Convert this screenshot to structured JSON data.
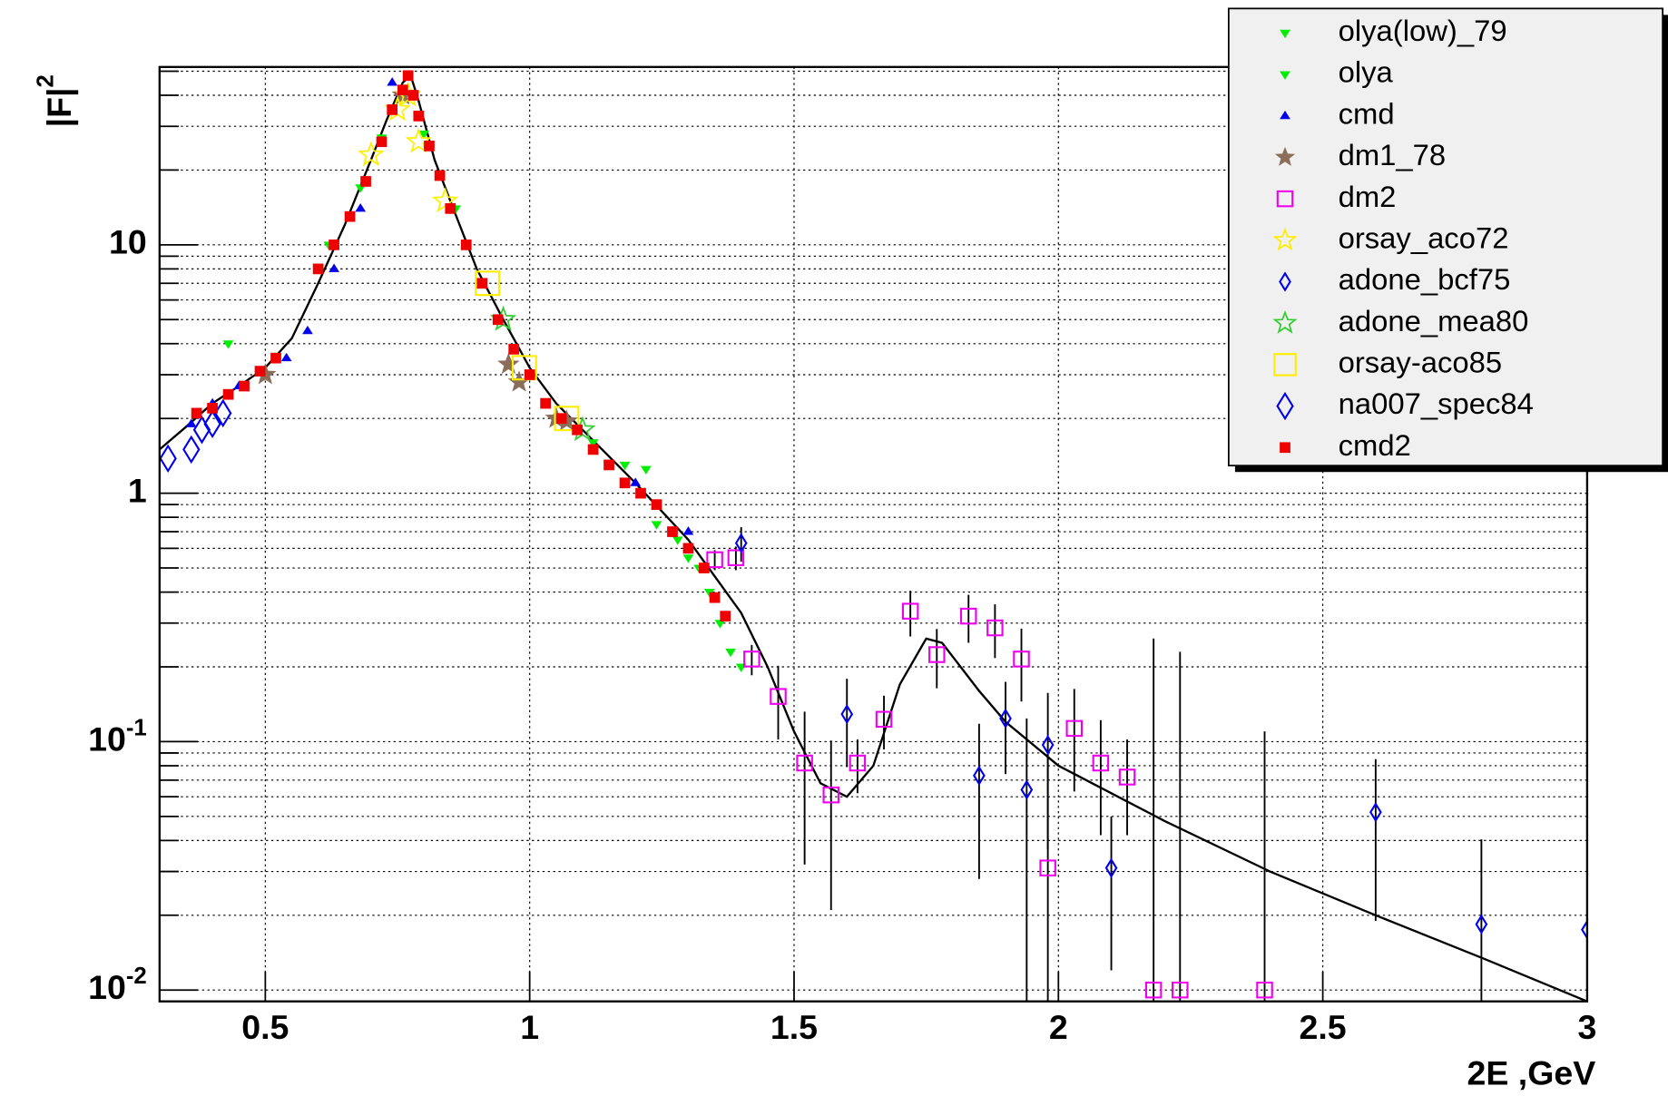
{
  "chart_data": {
    "type": "scatter",
    "xlabel": "2E  ,GeV",
    "ylabel": {
      "text": "|F|",
      "sup": "2"
    },
    "xlim": [
      0.3,
      3.0
    ],
    "ylim": [
      0.009,
      52
    ],
    "log_y": true,
    "grid": true,
    "xticks": [
      0.5,
      1,
      1.5,
      2,
      2.5,
      3
    ],
    "yticks": [
      {
        "value": 0.01,
        "label": "10",
        "sup": "-2"
      },
      {
        "value": 0.1,
        "label": "10",
        "sup": "-1"
      },
      1,
      10
    ],
    "yminorticks": [
      0.02,
      0.03,
      0.04,
      0.05,
      0.06,
      0.07,
      0.08,
      0.09,
      0.2,
      0.3,
      0.4,
      0.5,
      0.6,
      0.7,
      0.8,
      0.9,
      2,
      3,
      4,
      5,
      6,
      7,
      8,
      9,
      20,
      30,
      40,
      50
    ],
    "legend": "top-right",
    "curve": {
      "color": "#000000",
      "x": [
        0.3,
        0.35,
        0.4,
        0.45,
        0.5,
        0.55,
        0.6,
        0.65,
        0.7,
        0.73,
        0.76,
        0.775,
        0.79,
        0.82,
        0.85,
        0.9,
        0.95,
        1.0,
        1.05,
        1.1,
        1.2,
        1.3,
        1.4,
        1.45,
        1.5,
        1.55,
        1.6,
        1.65,
        1.7,
        1.75,
        1.78,
        1.85,
        1.9,
        2.0,
        2.2,
        2.4,
        2.6,
        2.8,
        3.0
      ],
      "values": [
        1.5,
        1.85,
        2.3,
        2.7,
        3.2,
        4.2,
        7,
        12,
        22,
        32,
        45,
        48,
        38,
        22,
        15,
        8,
        5,
        3.2,
        2.3,
        1.8,
        1.1,
        0.65,
        0.33,
        0.2,
        0.11,
        0.068,
        0.06,
        0.08,
        0.17,
        0.26,
        0.25,
        0.16,
        0.12,
        0.08,
        0.048,
        0.03,
        0.02,
        0.0135,
        0.009
      ]
    },
    "series": [
      {
        "name": "olya(low)_79",
        "color": "#00ee00",
        "marker": "tri-down",
        "size": 5,
        "x": [
          0.43,
          0.62,
          0.68,
          0.72,
          0.8,
          0.86
        ],
        "values": [
          4.0,
          10,
          17,
          27,
          28,
          14
        ]
      },
      {
        "name": "olya",
        "color": "#00ee00",
        "marker": "tri-down",
        "size": 5,
        "x": [
          1.06,
          1.12,
          1.18,
          1.22,
          1.24,
          1.28,
          1.3,
          1.32,
          1.34,
          1.36,
          1.38,
          1.4
        ],
        "values": [
          2.0,
          1.6,
          1.3,
          1.25,
          0.75,
          0.65,
          0.55,
          0.5,
          0.4,
          0.3,
          0.23,
          0.2
        ]
      },
      {
        "name": "cmd",
        "color": "#0000ee",
        "marker": "tri-up",
        "size": 5,
        "x": [
          0.36,
          0.4,
          0.45,
          0.54,
          0.58,
          0.63,
          0.68,
          0.74,
          1.2,
          1.3
        ],
        "values": [
          1.9,
          2.3,
          2.7,
          3.5,
          4.5,
          8.0,
          14,
          45,
          1.1,
          0.7
        ]
      },
      {
        "name": "dm1_78",
        "color": "#8b6e5a",
        "marker": "star",
        "size": 11,
        "x": [
          0.5,
          0.76,
          0.96,
          0.98,
          1.05,
          1.07
        ],
        "values": [
          3.0,
          40,
          3.3,
          2.8,
          2.0,
          1.95
        ]
      },
      {
        "name": "dm2",
        "color": "#ee00ee",
        "marker": "square-open",
        "size": 7,
        "x": [
          1.35,
          1.39,
          1.42,
          1.47,
          1.52,
          1.57,
          1.62,
          1.67,
          1.72,
          1.77,
          1.83,
          1.88,
          1.93,
          1.98,
          2.03,
          2.08,
          2.13,
          2.18,
          2.23,
          2.39
        ],
        "values": [
          0.54,
          0.55,
          0.215,
          0.152,
          0.082,
          0.061,
          0.082,
          0.123,
          0.335,
          0.224,
          0.32,
          0.287,
          0.215,
          0.031,
          0.113,
          0.082,
          0.072,
          0.01,
          0.01,
          0.01
        ],
        "errors": [
          0.05,
          0.06,
          0.03,
          0.05,
          0.05,
          0.04,
          0.02,
          0.03,
          0.07,
          0.06,
          0.07,
          0.07,
          0.07,
          0.06,
          0.05,
          0.04,
          0.03,
          0.25,
          0.22,
          0.1
        ]
      },
      {
        "name": "orsay_aco72",
        "color": "#ffee00",
        "marker": "star-open",
        "size": 11,
        "x": [
          0.7,
          0.75,
          0.77,
          0.79,
          0.84
        ],
        "values": [
          23,
          35,
          40,
          26,
          15
        ]
      },
      {
        "name": "adone_bcf75",
        "color": "#0000ee",
        "marker": "diamond-open",
        "size": 6,
        "x": [
          1.4,
          1.6,
          1.85,
          1.9,
          1.94,
          1.98,
          2.1,
          2.6,
          2.8,
          3.0
        ],
        "values": [
          0.63,
          0.129,
          0.073,
          0.124,
          0.064,
          0.097,
          0.031,
          0.052,
          0.0184,
          0.0175
        ],
        "errors": [
          0.1,
          0.05,
          0.045,
          0.05,
          0.06,
          0.06,
          0.019,
          0.033,
          0.022,
          0.0
        ]
      },
      {
        "name": "adone_mea80",
        "color": "#33cc33",
        "marker": "star-open",
        "size": 11,
        "x": [
          0.95,
          1.1
        ],
        "values": [
          5.0,
          1.8
        ]
      },
      {
        "name": "orsay-aco85",
        "color": "#ffee00",
        "marker": "square-open",
        "size": 11,
        "x": [
          0.92,
          0.99,
          1.07
        ],
        "values": [
          7,
          3.2,
          2.0
        ]
      },
      {
        "name": "na007_spec84",
        "color": "#0000ee",
        "marker": "diamond-open",
        "size": 9,
        "x": [
          0.316,
          0.36,
          0.38,
          0.4,
          0.42
        ],
        "values": [
          1.38,
          1.5,
          1.8,
          1.9,
          2.1
        ]
      },
      {
        "name": "cmd2",
        "color": "#ee0000",
        "marker": "square-filled",
        "size": 5,
        "x": [
          0.37,
          0.4,
          0.43,
          0.46,
          0.49,
          0.52,
          0.6,
          0.63,
          0.66,
          0.69,
          0.72,
          0.74,
          0.76,
          0.77,
          0.78,
          0.79,
          0.81,
          0.83,
          0.85,
          0.88,
          0.91,
          0.94,
          0.97,
          1.0,
          1.03,
          1.06,
          1.09,
          1.12,
          1.15,
          1.18,
          1.21,
          1.24,
          1.27,
          1.3,
          1.33,
          1.35,
          1.37
        ],
        "values": [
          2.1,
          2.2,
          2.5,
          2.7,
          3.1,
          3.5,
          8,
          10,
          13,
          18,
          26,
          35,
          42,
          48,
          40,
          33,
          25,
          19,
          14,
          10,
          7,
          5,
          3.8,
          3.0,
          2.3,
          2.0,
          1.8,
          1.5,
          1.3,
          1.1,
          1.0,
          0.9,
          0.7,
          0.6,
          0.5,
          0.38,
          0.32
        ]
      }
    ]
  }
}
